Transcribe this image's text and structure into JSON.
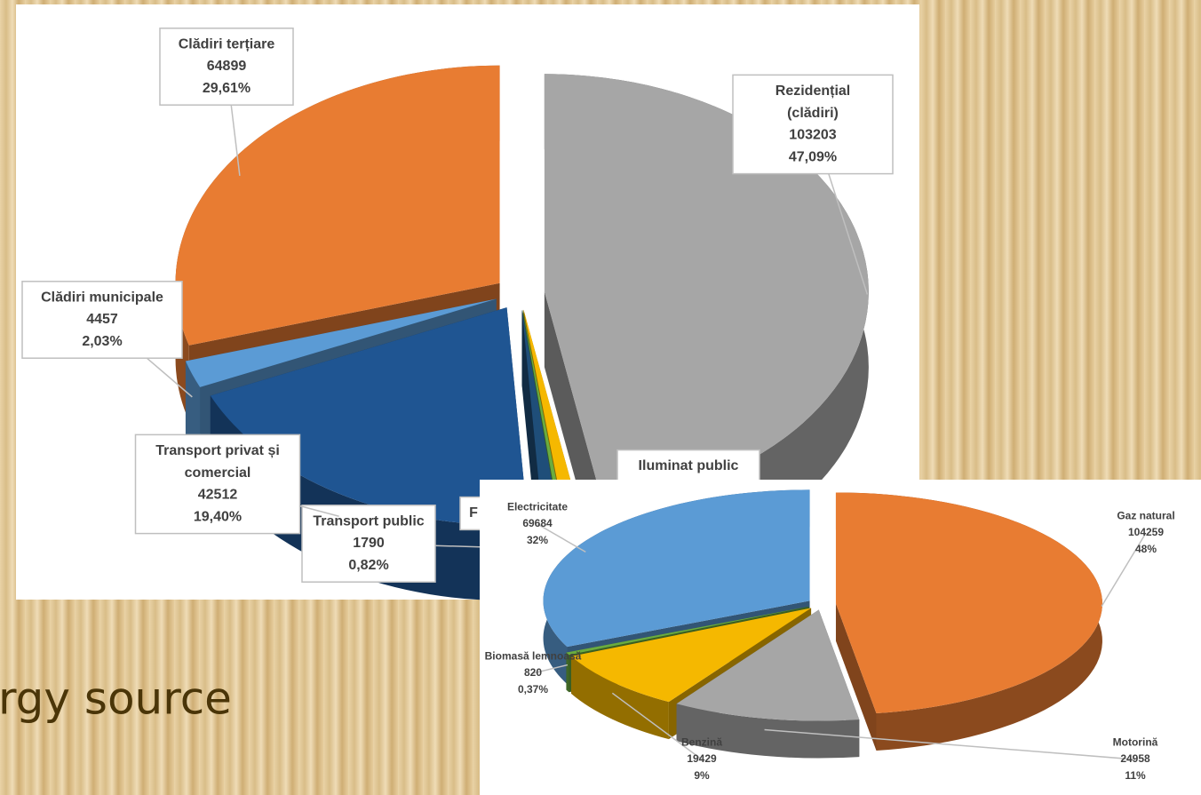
{
  "slide_text": "rgy source",
  "chart_data": [
    {
      "type": "pie",
      "categories": [
        "Rezidențial (clădiri)",
        "Iluminat public",
        "F",
        "Transport public",
        "Transport privat și comercial",
        "Clădiri municipale",
        "Clădiri terțiare"
      ],
      "values": [
        103203,
        1800,
        500,
        1790,
        42512,
        4457,
        64899
      ],
      "percent_labels": [
        "47,09%",
        null,
        null,
        "0,82%",
        "19,40%",
        "2,03%",
        "29,61%"
      ],
      "value_printed": [
        true,
        false,
        false,
        true,
        true,
        true,
        true
      ],
      "colors": [
        "#a6a6a6",
        "#f5b800",
        "#6aac3f",
        "#1f4e79",
        "#1f5592",
        "#5b9bd5",
        "#e87c32"
      ]
    },
    {
      "type": "pie",
      "categories": [
        "Gaz natural",
        "Motorină",
        "Benzină",
        "Biomasă lemnoasă",
        "Electricitate"
      ],
      "values": [
        104259,
        24958,
        19429,
        820,
        69684
      ],
      "percent_labels": [
        "48%",
        "11%",
        "9%",
        "0,37%",
        "32%"
      ],
      "value_printed": [
        true,
        true,
        true,
        true,
        true
      ],
      "colors": [
        "#e87c32",
        "#a6a6a6",
        "#f5b800",
        "#6aac3f",
        "#5b9bd5"
      ]
    }
  ]
}
